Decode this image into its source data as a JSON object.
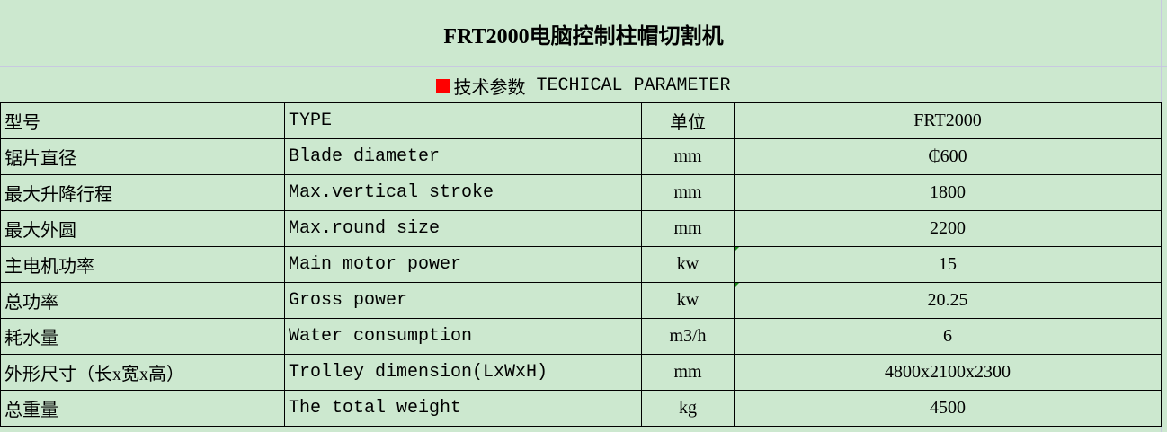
{
  "title": "FRT2000电脑控制柱帽切割机",
  "subtitle": {
    "cn": "技术参数",
    "en": "TECHICAL PARAMETER",
    "marker_color": "#ff0000"
  },
  "table": {
    "rows": [
      {
        "cn": "型号",
        "en": "TYPE",
        "unit": "单位",
        "value": "FRT2000"
      },
      {
        "cn": "锯片直径",
        "en": "Blade diameter",
        "unit": "mm",
        "value": "₵600"
      },
      {
        "cn": "最大升降行程",
        "en": "Max.vertical stroke",
        "unit": "mm",
        "value": "1800"
      },
      {
        "cn": "最大外圆",
        "en": "Max.round size",
        "unit": "mm",
        "value": "2200"
      },
      {
        "cn": "主电机功率",
        "en": "Main motor power",
        "unit": "kw",
        "value": "15"
      },
      {
        "cn": "总功率",
        "en": "Gross power",
        "unit": "kw",
        "value": "20.25"
      },
      {
        "cn": "耗水量",
        "en": "Water consumption",
        "unit": "m3/h",
        "value": "6"
      },
      {
        "cn": "外形尺寸（长x宽x高）",
        "en": "Trolley dimension(LxWxH)",
        "unit": "mm",
        "value": "4800x2100x2300"
      },
      {
        "cn": "总重量",
        "en": "The total weight",
        "unit": "kg",
        "value": "4500"
      }
    ]
  }
}
